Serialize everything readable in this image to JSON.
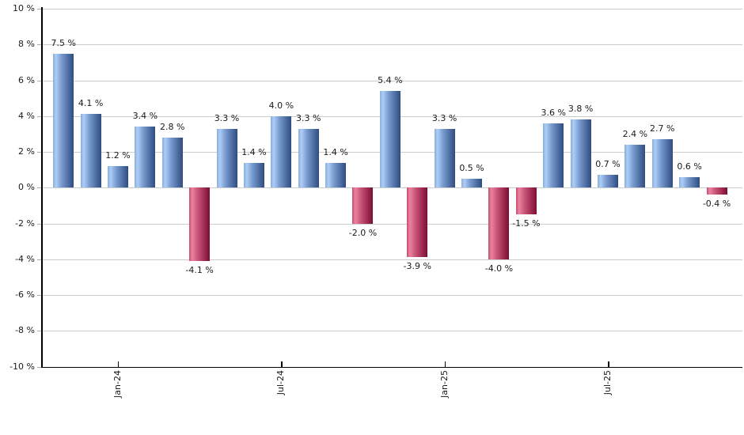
{
  "chart_data": {
    "type": "bar",
    "title": "",
    "xlabel": "",
    "ylabel": "",
    "ylim": [
      -10,
      10
    ],
    "y_tick_step": 2,
    "grid": true,
    "legend": "none",
    "y_tick_labels": [
      "10 %",
      "8 %",
      "6 %",
      "4 %",
      "2 %",
      "0 %",
      "-2 %",
      "-4 %",
      "-6 %",
      "-8 %",
      "-10 %"
    ],
    "y_tick_values": [
      10,
      8,
      6,
      4,
      2,
      0,
      -2,
      -4,
      -6,
      -8,
      -10
    ],
    "x_tick_labels": [
      "Jan-24",
      "Jul-24",
      "Jan-25",
      "Jul-25"
    ],
    "x_tick_bar_indices": [
      2,
      8,
      14,
      20
    ],
    "values": [
      7.5,
      4.1,
      1.2,
      3.4,
      2.8,
      -4.1,
      3.3,
      1.4,
      4.0,
      3.3,
      1.4,
      -2.0,
      5.4,
      -3.9,
      3.3,
      0.5,
      -4.0,
      -1.5,
      3.6,
      3.8,
      0.7,
      2.4,
      2.7,
      0.6,
      -0.4
    ],
    "bar_labels": [
      "7.5 %",
      "4.1 %",
      "1.2 %",
      "3.4 %",
      "2.8 %",
      "-4.1 %",
      "3.3 %",
      "1.4 %",
      "4.0 %",
      "3.3 %",
      "1.4 %",
      "-2.0 %",
      "5.4 %",
      "-3.9 %",
      "3.3 %",
      "0.5 %",
      "-4.0 %",
      "-1.5 %",
      "3.6 %",
      "3.8 %",
      "0.7 %",
      "2.4 %",
      "2.7 %",
      "0.6 %",
      "-0.4 %"
    ],
    "colors": {
      "positive_bar_gradient": [
        "#88aede",
        "#aecdf4",
        "#7a9ed2",
        "#4d6da3",
        "#2f4d7e"
      ],
      "negative_bar_gradient": [
        "#c54d70",
        "#ea839e",
        "#cb577b",
        "#9d2a4f",
        "#7a0f33"
      ],
      "gridline": "#cccccc",
      "axis": "#000000",
      "label_text": "#1a1a1a",
      "background": "#ffffff"
    }
  }
}
